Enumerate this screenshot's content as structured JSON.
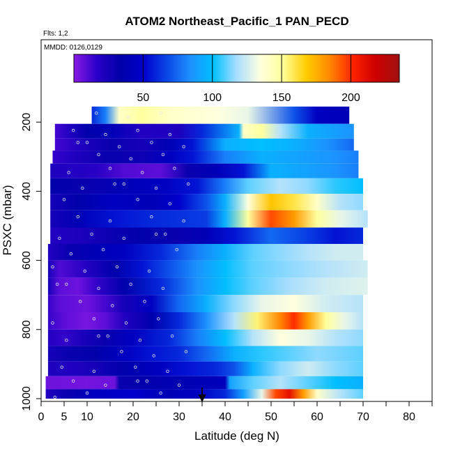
{
  "chart_data": {
    "type": "heatmap",
    "title": "ATOM2 Northeast_Pacific_1 PAN_PECD",
    "flights_note": "Flts: 1,2",
    "date_note": "MMDD: 0126,0129",
    "xlabel": "Latitude (deg N)",
    "ylabel": "PSXC (mbar)",
    "xlim": [
      0,
      85
    ],
    "ylim": [
      1000,
      0
    ],
    "x_ticks": [
      0,
      5,
      10,
      20,
      30,
      40,
      50,
      60,
      70,
      80
    ],
    "x_minor_ticks": [
      15,
      25,
      35,
      45,
      55,
      65,
      75,
      85
    ],
    "y_ticks": [
      200,
      400,
      600,
      800,
      1000
    ],
    "colorbar": {
      "range": [
        0,
        235
      ],
      "ticks": [
        50,
        100,
        150,
        200
      ],
      "colors": [
        "#8a1ae6",
        "#2a00c8",
        "#0000a8",
        "#0000cd",
        "#0a46e6",
        "#1e90ff",
        "#00c0ff",
        "#a8ddff",
        "#ffffe0",
        "#ffff99",
        "#ffcc00",
        "#ff8800",
        "#ff2200",
        "#cc0000",
        "#a01010"
      ]
    },
    "marker_latitude": 35,
    "rows": [
      {
        "p": 180,
        "lat_start": 11,
        "lat_end": 67,
        "values": [
          [
            11,
            60
          ],
          [
            14,
            80
          ],
          [
            17,
            140
          ],
          [
            22,
            150
          ],
          [
            28,
            140
          ],
          [
            38,
            135
          ],
          [
            45,
            130
          ],
          [
            55,
            70
          ],
          [
            60,
            45
          ],
          [
            67,
            40
          ]
        ]
      },
      {
        "p": 230,
        "lat_start": 3,
        "lat_end": 68,
        "values": [
          [
            3,
            12
          ],
          [
            6,
            20
          ],
          [
            10,
            35
          ],
          [
            15,
            40
          ],
          [
            22,
            20
          ],
          [
            30,
            22
          ],
          [
            35,
            60
          ],
          [
            43,
            95
          ],
          [
            44,
            140
          ],
          [
            48,
            150
          ],
          [
            52,
            120
          ],
          [
            58,
            95
          ],
          [
            63,
            90
          ],
          [
            68,
            85
          ]
        ]
      },
      {
        "p": 265,
        "lat_start": 3,
        "lat_end": 68,
        "values": [
          [
            3,
            12
          ],
          [
            8,
            20
          ],
          [
            15,
            30
          ],
          [
            22,
            25
          ],
          [
            28,
            40
          ],
          [
            33,
            55
          ],
          [
            40,
            95
          ],
          [
            48,
            100
          ],
          [
            55,
            95
          ],
          [
            62,
            85
          ],
          [
            68,
            75
          ]
        ]
      },
      {
        "p": 300,
        "lat_start": 2.5,
        "lat_end": 69,
        "values": [
          [
            2.5,
            15
          ],
          [
            8,
            22
          ],
          [
            14,
            30
          ],
          [
            22,
            28
          ],
          [
            28,
            45
          ],
          [
            33,
            55
          ],
          [
            40,
            80
          ],
          [
            48,
            95
          ],
          [
            56,
            90
          ],
          [
            64,
            85
          ],
          [
            69,
            80
          ]
        ]
      },
      {
        "p": 340,
        "lat_start": 2,
        "lat_end": 69,
        "values": [
          [
            2,
            22
          ],
          [
            6,
            20
          ],
          [
            12,
            18
          ],
          [
            18,
            10
          ],
          [
            26,
            8
          ],
          [
            32,
            30
          ],
          [
            38,
            40
          ],
          [
            44,
            55
          ],
          [
            50,
            95
          ],
          [
            58,
            90
          ],
          [
            64,
            85
          ],
          [
            69,
            80
          ]
        ]
      },
      {
        "p": 385,
        "lat_start": 2,
        "lat_end": 70,
        "values": [
          [
            2,
            35
          ],
          [
            10,
            30
          ],
          [
            18,
            40
          ],
          [
            26,
            45
          ],
          [
            34,
            55
          ],
          [
            40,
            80
          ],
          [
            45,
            110
          ],
          [
            52,
            120
          ],
          [
            58,
            115
          ],
          [
            64,
            105
          ],
          [
            70,
            100
          ]
        ]
      },
      {
        "p": 430,
        "lat_start": 2,
        "lat_end": 70,
        "values": [
          [
            2,
            25
          ],
          [
            8,
            35
          ],
          [
            16,
            45
          ],
          [
            24,
            40
          ],
          [
            30,
            50
          ],
          [
            36,
            70
          ],
          [
            40,
            95
          ],
          [
            45,
            135
          ],
          [
            50,
            170
          ],
          [
            55,
            160
          ],
          [
            60,
            140
          ],
          [
            65,
            120
          ],
          [
            70,
            115
          ]
        ]
      },
      {
        "p": 480,
        "lat_start": 2,
        "lat_end": 71,
        "values": [
          [
            2,
            25
          ],
          [
            8,
            40
          ],
          [
            16,
            55
          ],
          [
            24,
            60
          ],
          [
            30,
            62
          ],
          [
            36,
            65
          ],
          [
            40,
            95
          ],
          [
            45,
            150
          ],
          [
            50,
            195
          ],
          [
            55,
            180
          ],
          [
            60,
            150
          ],
          [
            65,
            130
          ],
          [
            71,
            120
          ]
        ]
      },
      {
        "p": 530,
        "lat_start": 2,
        "lat_end": 70,
        "values": [
          [
            2,
            20
          ],
          [
            8,
            22
          ],
          [
            14,
            28
          ],
          [
            22,
            35
          ],
          [
            30,
            30
          ],
          [
            36,
            40
          ],
          [
            42,
            55
          ],
          [
            50,
            75
          ],
          [
            58,
            65
          ],
          [
            64,
            55
          ],
          [
            70,
            60
          ]
        ]
      },
      {
        "p": 575,
        "lat_start": 1.5,
        "lat_end": 70,
        "values": [
          [
            1.5,
            20
          ],
          [
            6,
            30
          ],
          [
            12,
            40
          ],
          [
            18,
            45
          ],
          [
            26,
            60
          ],
          [
            34,
            80
          ],
          [
            40,
            95
          ],
          [
            46,
            110
          ],
          [
            52,
            115
          ],
          [
            58,
            120
          ],
          [
            64,
            125
          ],
          [
            70,
            125
          ]
        ]
      },
      {
        "p": 625,
        "lat_start": 1.5,
        "lat_end": 71,
        "values": [
          [
            1.5,
            25
          ],
          [
            4,
            10
          ],
          [
            10,
            20
          ],
          [
            16,
            35
          ],
          [
            22,
            55
          ],
          [
            28,
            70
          ],
          [
            34,
            85
          ],
          [
            40,
            100
          ],
          [
            46,
            110
          ],
          [
            54,
            115
          ],
          [
            62,
            120
          ],
          [
            71,
            125
          ]
        ]
      },
      {
        "p": 675,
        "lat_start": 1.5,
        "lat_end": 71,
        "values": [
          [
            1.5,
            25
          ],
          [
            4,
            8
          ],
          [
            8,
            5
          ],
          [
            12,
            15
          ],
          [
            18,
            35
          ],
          [
            26,
            60
          ],
          [
            34,
            85
          ],
          [
            40,
            100
          ],
          [
            46,
            110
          ],
          [
            54,
            118
          ],
          [
            62,
            125
          ],
          [
            71,
            128
          ]
        ]
      },
      {
        "p": 725,
        "lat_start": 1.5,
        "lat_end": 70,
        "values": [
          [
            1.5,
            15
          ],
          [
            4,
            8
          ],
          [
            10,
            5
          ],
          [
            14,
            12
          ],
          [
            18,
            25
          ],
          [
            24,
            45
          ],
          [
            30,
            75
          ],
          [
            36,
            95
          ],
          [
            42,
            115
          ],
          [
            48,
            130
          ],
          [
            55,
            135
          ],
          [
            62,
            125
          ],
          [
            70,
            120
          ]
        ]
      },
      {
        "p": 775,
        "lat_start": 1.5,
        "lat_end": 70,
        "values": [
          [
            1.5,
            15
          ],
          [
            5,
            8
          ],
          [
            10,
            3
          ],
          [
            14,
            8
          ],
          [
            18,
            20
          ],
          [
            24,
            35
          ],
          [
            30,
            60
          ],
          [
            36,
            85
          ],
          [
            42,
            120
          ],
          [
            47,
            155
          ],
          [
            52,
            185
          ],
          [
            55,
            200
          ],
          [
            58,
            180
          ],
          [
            62,
            150
          ],
          [
            66,
            130
          ],
          [
            70,
            120
          ]
        ]
      },
      {
        "p": 825,
        "lat_start": 1.5,
        "lat_end": 70,
        "values": [
          [
            1.5,
            20
          ],
          [
            5,
            15
          ],
          [
            10,
            25
          ],
          [
            14,
            30
          ],
          [
            20,
            45
          ],
          [
            28,
            60
          ],
          [
            34,
            80
          ],
          [
            40,
            100
          ],
          [
            46,
            120
          ],
          [
            52,
            135
          ],
          [
            58,
            130
          ],
          [
            64,
            120
          ],
          [
            70,
            115
          ]
        ]
      },
      {
        "p": 870,
        "lat_start": 1.5,
        "lat_end": 70,
        "values": [
          [
            1.5,
            25
          ],
          [
            6,
            30
          ],
          [
            12,
            35
          ],
          [
            18,
            45
          ],
          [
            24,
            55
          ],
          [
            30,
            60
          ],
          [
            36,
            75
          ],
          [
            42,
            95
          ],
          [
            48,
            105
          ],
          [
            54,
            110
          ],
          [
            60,
            115
          ],
          [
            66,
            112
          ],
          [
            70,
            110
          ]
        ]
      },
      {
        "p": 915,
        "lat_start": 1.5,
        "lat_end": 70,
        "values": [
          [
            1.5,
            22
          ],
          [
            6,
            20
          ],
          [
            12,
            25
          ],
          [
            18,
            35
          ],
          [
            26,
            45
          ],
          [
            32,
            55
          ],
          [
            38,
            60
          ],
          [
            42,
            70
          ],
          [
            46,
            95
          ],
          [
            52,
            115
          ],
          [
            58,
            125
          ],
          [
            64,
            115
          ],
          [
            70,
            110
          ]
        ]
      },
      {
        "p": 955,
        "lat_start": 1,
        "lat_end": 70,
        "values": [
          [
            1,
            5
          ],
          [
            10,
            4
          ],
          [
            16,
            5
          ],
          [
            17,
            30
          ],
          [
            22,
            32
          ],
          [
            28,
            38
          ],
          [
            34,
            40
          ],
          [
            40,
            42
          ],
          [
            41,
            90
          ],
          [
            46,
            110
          ],
          [
            52,
            120
          ],
          [
            58,
            110
          ],
          [
            64,
            100
          ],
          [
            70,
            95
          ]
        ]
      },
      {
        "p": 990,
        "lat_start": 1,
        "lat_end": 70,
        "values": [
          [
            1,
            20
          ],
          [
            6,
            30
          ],
          [
            12,
            45
          ],
          [
            20,
            50
          ],
          [
            28,
            40
          ],
          [
            34,
            45
          ],
          [
            40,
            60
          ],
          [
            44,
            90
          ],
          [
            48,
            130
          ],
          [
            51,
            195
          ],
          [
            54,
            210
          ],
          [
            57,
            180
          ],
          [
            60,
            140
          ],
          [
            65,
            120
          ],
          [
            70,
            110
          ]
        ]
      }
    ]
  }
}
